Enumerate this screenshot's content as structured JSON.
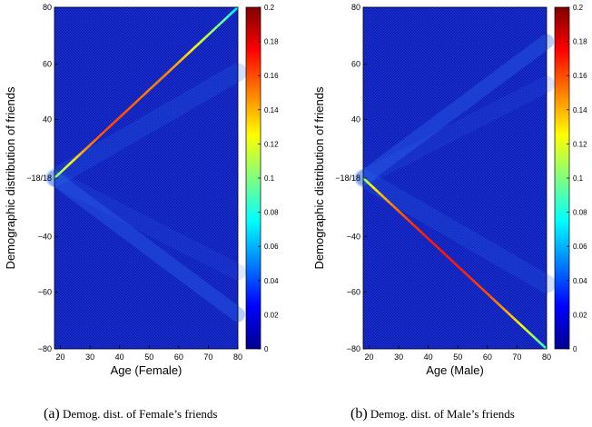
{
  "chart_data": [
    {
      "type": "heatmap",
      "panel_label": "(a)",
      "caption": "Demog. dist. of Female’s friends",
      "xlabel": "Age (Female)",
      "ylabel": "Demographic distribution of friends",
      "xlim": [
        18,
        80
      ],
      "ylim": [
        -80,
        80
      ],
      "xticks": [
        "20",
        "30",
        "40",
        "50",
        "60",
        "70",
        "80"
      ],
      "yticks": [
        "80",
        "60",
        "40",
        "−18/18",
        "−40",
        "−60",
        "−80"
      ],
      "colorbar": {
        "range": [
          0,
          0.2
        ],
        "ticks": [
          "0.2",
          "0.18",
          "0.16",
          "0.14",
          "0.12",
          "0.1",
          "0.08",
          "0.06",
          "0.04",
          "0.02",
          "0"
        ]
      },
      "dominant_ridge": {
        "half": "upper",
        "description": "same-sex (female) friends, diagonal from age 18 to 80",
        "x": [
          18,
          20,
          25,
          30,
          35,
          40,
          45,
          50,
          55,
          60,
          65,
          70,
          75,
          80
        ],
        "value": [
          0.1,
          0.11,
          0.13,
          0.15,
          0.16,
          0.16,
          0.155,
          0.15,
          0.15,
          0.14,
          0.125,
          0.11,
          0.095,
          0.07
        ]
      },
      "secondary_ridge": {
        "half": "lower",
        "description": "opposite-sex friends",
        "x": [
          18,
          20,
          30,
          40,
          50,
          60,
          70,
          80
        ],
        "value": [
          0.07,
          0.05,
          0.03,
          0.025,
          0.02,
          0.018,
          0.015,
          0.012
        ]
      }
    },
    {
      "type": "heatmap",
      "panel_label": "(b)",
      "caption": "Demog. dist. of Male’s friends",
      "xlabel": "Age (Male)",
      "ylabel": "Demographic distribution of friends",
      "xlim": [
        18,
        80
      ],
      "ylim": [
        -80,
        80
      ],
      "xticks": [
        "20",
        "30",
        "40",
        "50",
        "60",
        "70",
        "80"
      ],
      "yticks": [
        "80",
        "60",
        "40",
        "−18/18",
        "−40",
        "−60",
        "−80"
      ],
      "colorbar": {
        "range": [
          0,
          0.2
        ],
        "ticks": [
          "0.2",
          "0.18",
          "0.16",
          "0.14",
          "0.12",
          "0.1",
          "0.08",
          "0.06",
          "0.04",
          "0.02",
          "0"
        ]
      },
      "dominant_ridge": {
        "half": "lower",
        "description": "same-sex (male) friends, diagonal from age 18 to 80",
        "x": [
          18,
          20,
          25,
          30,
          35,
          40,
          45,
          50,
          55,
          60,
          65,
          70,
          75,
          80
        ],
        "value": [
          0.1,
          0.12,
          0.14,
          0.155,
          0.165,
          0.17,
          0.17,
          0.17,
          0.165,
          0.16,
          0.145,
          0.13,
          0.11,
          0.08
        ]
      },
      "secondary_ridge": {
        "half": "upper",
        "description": "opposite-sex friends",
        "x": [
          18,
          20,
          30,
          40,
          50,
          60,
          70,
          80
        ],
        "value": [
          0.05,
          0.04,
          0.03,
          0.025,
          0.02,
          0.018,
          0.015,
          0.012
        ]
      }
    }
  ]
}
